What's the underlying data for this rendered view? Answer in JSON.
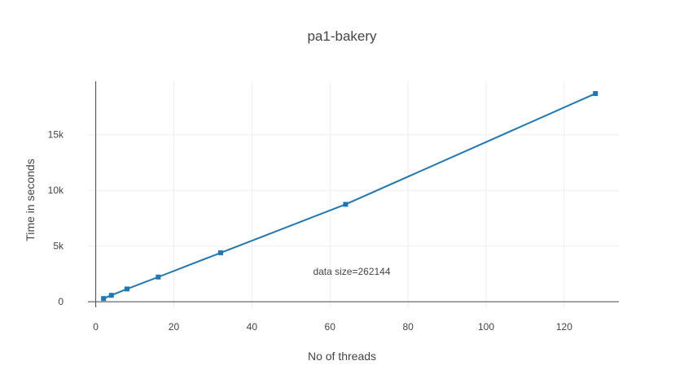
{
  "chart_data": {
    "type": "line",
    "title": "pa1-bakery",
    "xlabel": "No of threads",
    "ylabel": "Time in seconds",
    "annotation": "data size=262144",
    "xlim": [
      -2,
      134
    ],
    "ylim": [
      -500,
      19800
    ],
    "x_ticks": [
      0,
      20,
      40,
      60,
      80,
      100,
      120
    ],
    "x_tick_labels": [
      "0",
      "20",
      "40",
      "60",
      "80",
      "100",
      "120"
    ],
    "y_ticks": [
      0,
      5000,
      10000,
      15000
    ],
    "y_tick_labels": [
      "0",
      "5k",
      "10k",
      "15k"
    ],
    "grid": true,
    "legend": "none",
    "series": [
      {
        "color": "#1f77b4",
        "marker": "square",
        "x": [
          2,
          4,
          8,
          16,
          32,
          64,
          128
        ],
        "y": [
          290,
          580,
          1150,
          2220,
          4400,
          8750,
          18700
        ]
      }
    ]
  }
}
